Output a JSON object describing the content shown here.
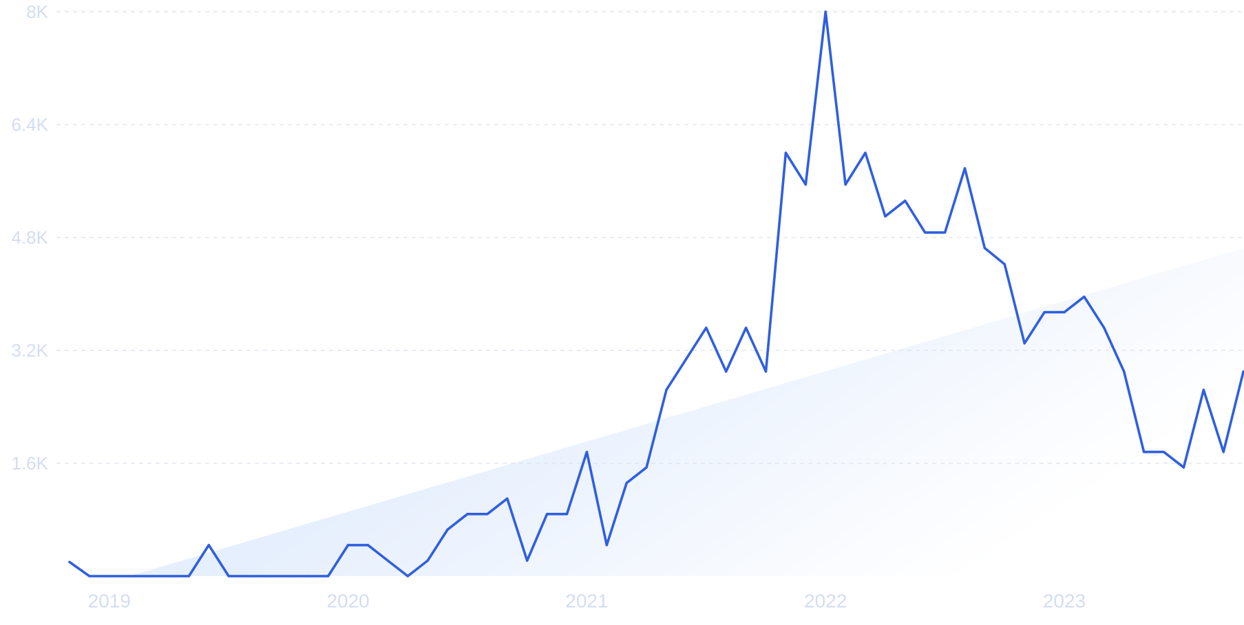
{
  "chart_data": {
    "type": "line",
    "title": "",
    "xlabel": "",
    "ylabel": "",
    "x_tick_labels": [
      "2019",
      "2020",
      "2021",
      "2022",
      "2023"
    ],
    "y_tick_labels": [
      "1.6K",
      "3.2K",
      "4.8K",
      "6.4K",
      "8K"
    ],
    "y_tick_values": [
      1600,
      3200,
      4800,
      6400,
      8000
    ],
    "ylim": [
      0,
      8000
    ],
    "xlim": [
      "2018-11",
      "2023-10"
    ],
    "grid": "horizontal dashed",
    "legend": "none",
    "series": [
      {
        "x": [
          "2018-11",
          "2018-12",
          "2019-01",
          "2019-02",
          "2019-03",
          "2019-04",
          "2019-05",
          "2019-06",
          "2019-07",
          "2019-08",
          "2019-09",
          "2019-10",
          "2019-11",
          "2019-12",
          "2020-01",
          "2020-02",
          "2020-03",
          "2020-04",
          "2020-05",
          "2020-06",
          "2020-07",
          "2020-08",
          "2020-09",
          "2020-10",
          "2020-11",
          "2020-12",
          "2021-01",
          "2021-02",
          "2021-03",
          "2021-04",
          "2021-05",
          "2021-06",
          "2021-07",
          "2021-08",
          "2021-09",
          "2021-10",
          "2021-11",
          "2021-12",
          "2022-01",
          "2022-02",
          "2022-03",
          "2022-04",
          "2022-05",
          "2022-06",
          "2022-07",
          "2022-08",
          "2022-09",
          "2022-10",
          "2022-11",
          "2022-12",
          "2023-01",
          "2023-02",
          "2023-03",
          "2023-04",
          "2023-05",
          "2023-06",
          "2023-07",
          "2023-08",
          "2023-09",
          "2023-10"
        ],
        "values": [
          200,
          0,
          0,
          0,
          0,
          0,
          0,
          440,
          0,
          0,
          0,
          0,
          0,
          0,
          440,
          440,
          220,
          0,
          220,
          660,
          880,
          880,
          1100,
          220,
          880,
          880,
          1760,
          440,
          1320,
          1540,
          2640,
          3080,
          3520,
          2900,
          3520,
          2900,
          6000,
          5550,
          8000,
          5550,
          6000,
          5100,
          5320,
          4870,
          4870,
          5780,
          4650,
          4420,
          3300,
          3740,
          3740,
          3960,
          3520,
          2900,
          1760,
          1760,
          1540,
          2640,
          1760,
          2900
        ]
      }
    ],
    "trend_band": {
      "start": {
        "x": "2019-02",
        "value": 0
      },
      "end": {
        "x": "2023-10",
        "value": 4650
      }
    },
    "colors": {
      "line": "#2f5fe0",
      "grid": "#dde1ea",
      "tick_text": "#d3ddf2",
      "band_light": "#e6effd",
      "band_fade": "#ffffff"
    }
  }
}
